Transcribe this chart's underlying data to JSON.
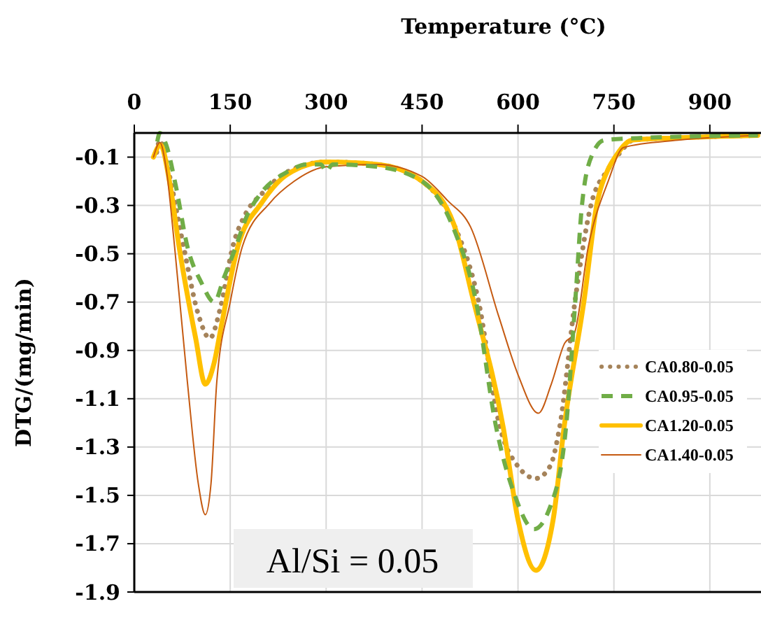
{
  "chart_data": {
    "type": "line",
    "xlabel": "Temperature (°C)",
    "ylabel": "DTG/(mg/min)",
    "xlim": [
      0,
      980
    ],
    "xticks": [
      0,
      150,
      300,
      450,
      600,
      750,
      900
    ],
    "ylim": [
      -1.9,
      0
    ],
    "yticks": [
      -0.1,
      -0.3,
      -0.5,
      -0.7,
      -0.9,
      -1.1,
      -1.3,
      -1.5,
      -1.7,
      -1.9
    ],
    "grid": true,
    "legend": "right",
    "annotations": [
      "Al/Si = 0.05"
    ],
    "series": [
      {
        "name": "CA0.80-0.05",
        "color": "#a5835a",
        "line_style": "dotted",
        "x": [
          35,
          40,
          50,
          77,
          100,
          118,
          135,
          154,
          175,
          200,
          240,
          300,
          380,
          450,
          500,
          537,
          572,
          600,
          628,
          650,
          665,
          690,
          714,
          741,
          760,
          780,
          850,
          975
        ],
        "values": [
          -0.08,
          -0.03,
          -0.12,
          -0.47,
          -0.75,
          -0.85,
          -0.72,
          -0.47,
          -0.33,
          -0.25,
          -0.16,
          -0.12,
          -0.13,
          -0.2,
          -0.38,
          -0.68,
          -1.22,
          -1.38,
          -1.43,
          -1.38,
          -1.22,
          -0.68,
          -0.3,
          -0.15,
          -0.08,
          -0.03,
          -0.02,
          -0.01
        ]
      },
      {
        "name": "CA0.95-0.05",
        "color": "#70ad47",
        "line_style": "dashed",
        "x": [
          35,
          40,
          50,
          65,
          83,
          105,
          125,
          140,
          159,
          175,
          198,
          240,
          270,
          292,
          300,
          310,
          380,
          450,
          500,
          533,
          566,
          595,
          625,
          650,
          675,
          690,
          700,
          716,
          735,
          800,
          975
        ],
        "values": [
          -0.05,
          0.0,
          -0.05,
          -0.22,
          -0.47,
          -0.62,
          -0.7,
          -0.6,
          -0.47,
          -0.35,
          -0.25,
          -0.16,
          -0.13,
          -0.13,
          -0.16,
          -0.13,
          -0.14,
          -0.2,
          -0.4,
          -0.68,
          -1.22,
          -1.5,
          -1.64,
          -1.55,
          -1.22,
          -0.68,
          -0.3,
          -0.09,
          -0.03,
          -0.02,
          -0.01
        ]
      },
      {
        "name": "CA1.20-0.05",
        "color": "#ffc000",
        "line_style": "solid",
        "x": [
          30,
          41,
          55,
          70,
          96,
          111,
          125,
          136,
          162,
          199,
          240,
          300,
          380,
          450,
          500,
          529,
          577,
          600,
          628,
          655,
          672,
          704,
          723,
          741,
          752,
          778,
          850,
          975
        ],
        "values": [
          -0.1,
          -0.05,
          -0.2,
          -0.47,
          -0.85,
          -1.04,
          -0.95,
          -0.8,
          -0.47,
          -0.29,
          -0.17,
          -0.12,
          -0.13,
          -0.2,
          -0.38,
          -0.68,
          -1.22,
          -1.6,
          -1.81,
          -1.6,
          -1.22,
          -0.68,
          -0.3,
          -0.15,
          -0.1,
          -0.03,
          -0.02,
          -0.01
        ]
      },
      {
        "name": "CA1.40-0.05",
        "color": "#c55a11",
        "line_style": "solid",
        "x": [
          30,
          40,
          50,
          63,
          83,
          100,
          111,
          120,
          129,
          150,
          169,
          212,
          250,
          300,
          380,
          450,
          490,
          526,
          570,
          600,
          632,
          652,
          673,
          688,
          710,
          741,
          765,
          850,
          975
        ],
        "values": [
          -0.1,
          -0.04,
          -0.15,
          -0.47,
          -1.03,
          -1.45,
          -1.58,
          -1.45,
          -1.03,
          -0.7,
          -0.47,
          -0.29,
          -0.2,
          -0.14,
          -0.13,
          -0.18,
          -0.28,
          -0.39,
          -0.76,
          -1.0,
          -1.16,
          -1.04,
          -0.87,
          -0.83,
          -0.47,
          -0.2,
          -0.06,
          -0.03,
          -0.01
        ]
      }
    ]
  }
}
